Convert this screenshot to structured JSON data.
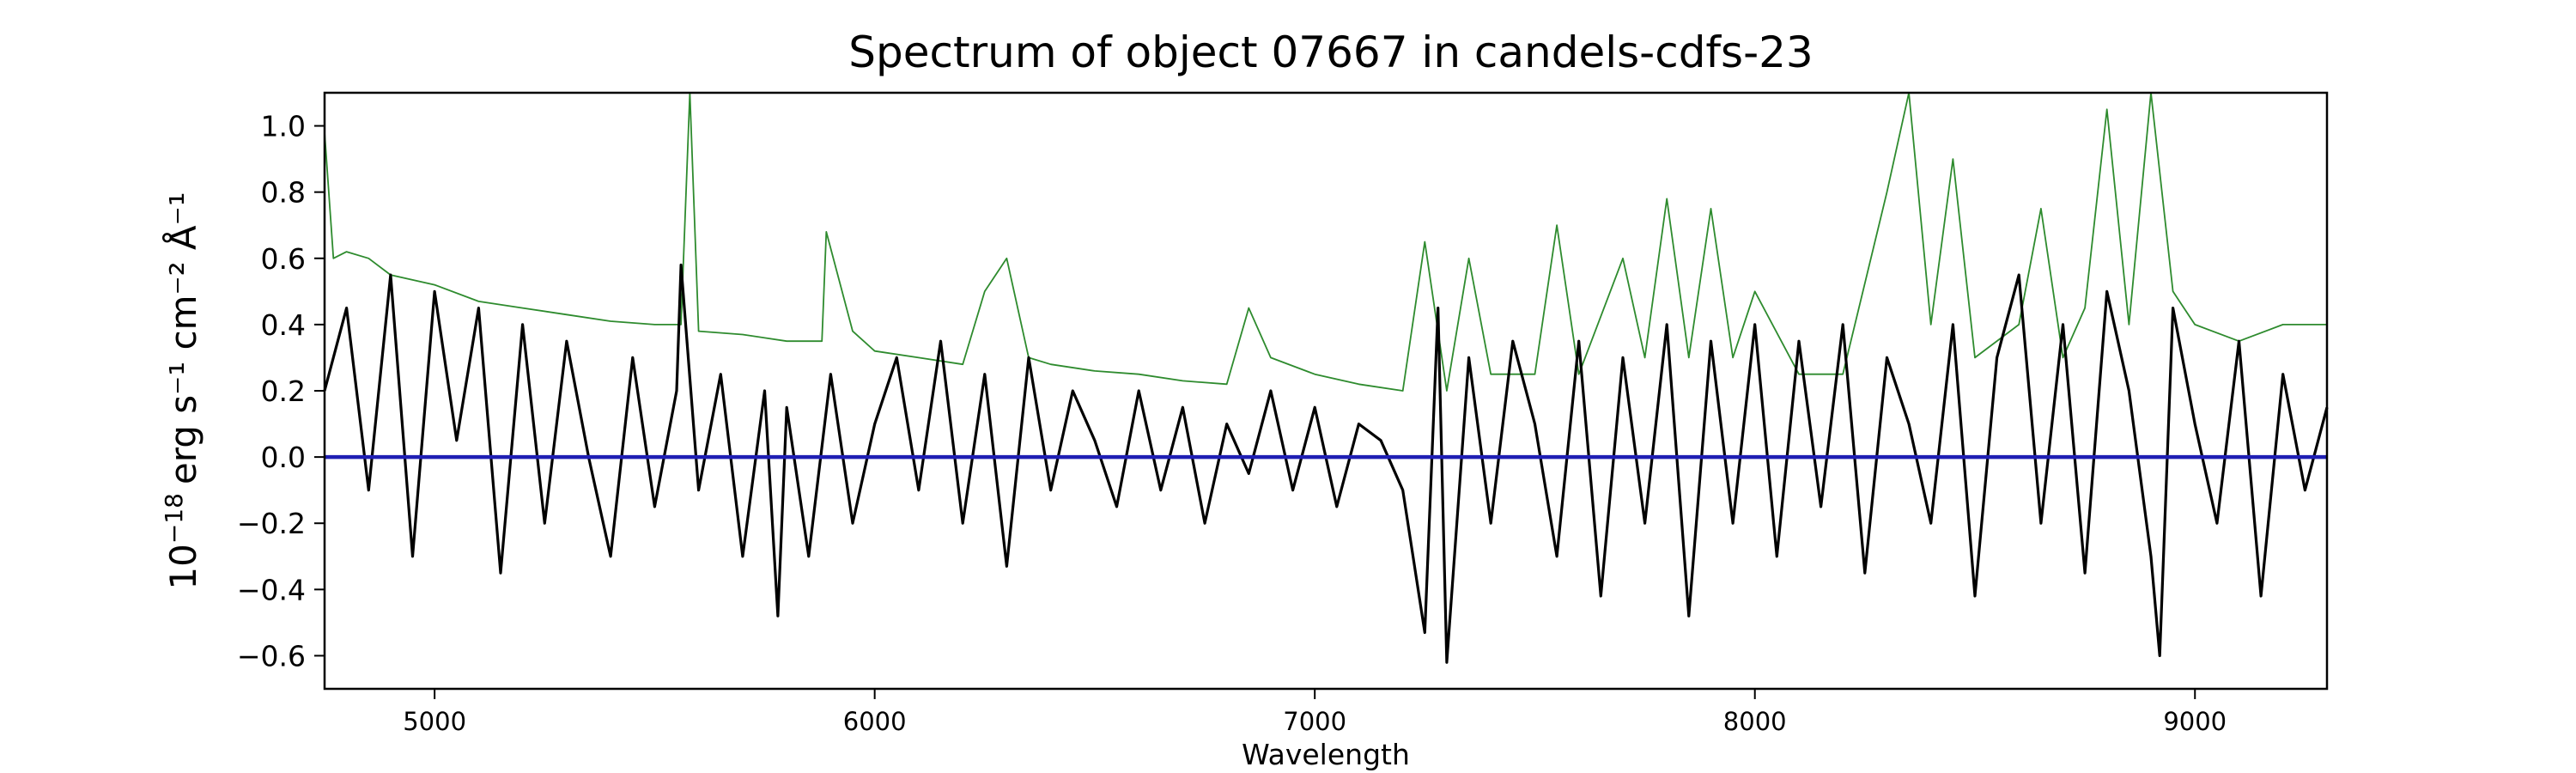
{
  "chart_data": {
    "type": "line",
    "title": "Spectrum of object 07667 in candels-cdfs-23",
    "xlabel": "Wavelength",
    "ylabel_parts": {
      "base": "10",
      "exp": "−18",
      "units": "erg s⁻¹ cm⁻² Å⁻¹"
    },
    "xlim": [
      4750,
      9300
    ],
    "ylim": [
      -0.7,
      1.1
    ],
    "x_ticks": [
      5000,
      6000,
      7000,
      8000,
      9000
    ],
    "y_ticks": [
      "-0.6",
      "-0.4",
      "-0.2",
      "0.0",
      "0.2",
      "0.4",
      "0.6",
      "0.8",
      "1.0"
    ],
    "grid": false,
    "colors": {
      "flux": "#000000",
      "noise": "#2e8b2e",
      "model": "#1f1fb4"
    },
    "series": [
      {
        "name": "",
        "role": "flux",
        "x": [
          4750,
          4800,
          4850,
          4900,
          4950,
          5000,
          5050,
          5100,
          5150,
          5200,
          5250,
          5300,
          5350,
          5400,
          5450,
          5500,
          5550,
          5560,
          5600,
          5650,
          5700,
          5750,
          5780,
          5800,
          5850,
          5900,
          5950,
          6000,
          6050,
          6100,
          6150,
          6200,
          6250,
          6300,
          6350,
          6400,
          6450,
          6500,
          6550,
          6600,
          6650,
          6700,
          6750,
          6800,
          6850,
          6900,
          6950,
          7000,
          7050,
          7100,
          7150,
          7200,
          7250,
          7280,
          7300,
          7350,
          7400,
          7450,
          7500,
          7550,
          7600,
          7650,
          7700,
          7750,
          7800,
          7850,
          7900,
          7950,
          8000,
          8050,
          8100,
          8150,
          8200,
          8250,
          8300,
          8350,
          8400,
          8450,
          8500,
          8550,
          8600,
          8650,
          8700,
          8750,
          8800,
          8850,
          8900,
          8920,
          8950,
          9000,
          9050,
          9100,
          9150,
          9200,
          9250,
          9300
        ],
        "y": [
          0.2,
          0.45,
          -0.1,
          0.55,
          -0.3,
          0.5,
          0.05,
          0.45,
          -0.35,
          0.4,
          -0.2,
          0.35,
          0.0,
          -0.3,
          0.3,
          -0.15,
          0.2,
          0.58,
          -0.1,
          0.25,
          -0.3,
          0.2,
          -0.48,
          0.15,
          -0.3,
          0.25,
          -0.2,
          0.1,
          0.3,
          -0.1,
          0.35,
          -0.2,
          0.25,
          -0.33,
          0.3,
          -0.1,
          0.2,
          0.05,
          -0.15,
          0.2,
          -0.1,
          0.15,
          -0.2,
          0.1,
          -0.05,
          0.2,
          -0.1,
          0.15,
          -0.15,
          0.1,
          0.05,
          -0.1,
          -0.53,
          0.45,
          -0.62,
          0.3,
          -0.2,
          0.35,
          0.1,
          -0.3,
          0.35,
          -0.42,
          0.3,
          -0.2,
          0.4,
          -0.48,
          0.35,
          -0.2,
          0.4,
          -0.3,
          0.35,
          -0.15,
          0.4,
          -0.35,
          0.3,
          0.1,
          -0.2,
          0.4,
          -0.42,
          0.3,
          0.55,
          -0.2,
          0.4,
          -0.35,
          0.5,
          0.2,
          -0.3,
          -0.6,
          0.45,
          0.1,
          -0.2,
          0.35,
          -0.42,
          0.25,
          -0.1,
          0.15
        ]
      },
      {
        "name": "",
        "role": "noise",
        "x": [
          4750,
          4770,
          4800,
          4850,
          4900,
          5000,
          5100,
          5200,
          5300,
          5400,
          5500,
          5560,
          5580,
          5600,
          5700,
          5800,
          5880,
          5890,
          5950,
          6000,
          6100,
          6200,
          6250,
          6300,
          6350,
          6400,
          6500,
          6600,
          6700,
          6800,
          6850,
          6900,
          7000,
          7100,
          7200,
          7250,
          7300,
          7350,
          7400,
          7500,
          7550,
          7600,
          7700,
          7750,
          7800,
          7850,
          7900,
          7950,
          8000,
          8100,
          8200,
          8300,
          8350,
          8400,
          8450,
          8500,
          8600,
          8650,
          8700,
          8750,
          8800,
          8850,
          8900,
          8950,
          9000,
          9100,
          9200,
          9300
        ],
        "y": [
          0.98,
          0.6,
          0.62,
          0.6,
          0.55,
          0.52,
          0.47,
          0.45,
          0.43,
          0.41,
          0.4,
          0.4,
          1.1,
          0.38,
          0.37,
          0.35,
          0.35,
          0.68,
          0.38,
          0.32,
          0.3,
          0.28,
          0.5,
          0.6,
          0.3,
          0.28,
          0.26,
          0.25,
          0.23,
          0.22,
          0.45,
          0.3,
          0.25,
          0.22,
          0.2,
          0.65,
          0.2,
          0.6,
          0.25,
          0.25,
          0.7,
          0.25,
          0.6,
          0.3,
          0.78,
          0.3,
          0.75,
          0.3,
          0.5,
          0.25,
          0.25,
          0.8,
          1.1,
          0.4,
          0.9,
          0.3,
          0.4,
          0.75,
          0.3,
          0.45,
          1.05,
          0.4,
          1.1,
          0.5,
          0.4,
          0.35,
          0.4,
          0.4
        ]
      },
      {
        "name": "",
        "role": "model",
        "x": [
          4750,
          9300
        ],
        "y": [
          0.0,
          0.0
        ]
      }
    ]
  }
}
